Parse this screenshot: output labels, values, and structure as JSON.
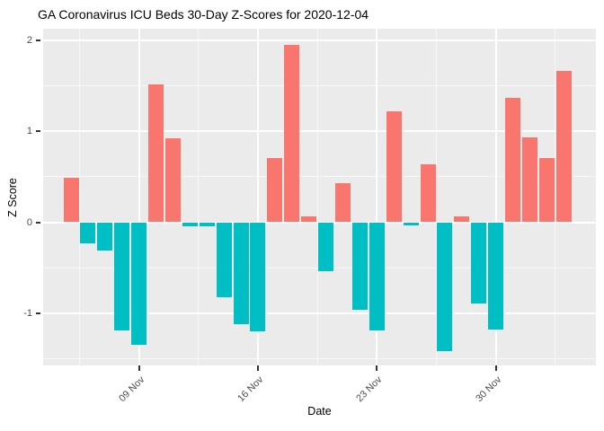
{
  "title": "GA Coronavirus ICU Beds 30-Day Z-Scores for 2020-12-04",
  "chart_data": {
    "type": "bar",
    "title": "GA Coronavirus ICU Beds 30-Day Z-Scores for 2020-12-04",
    "xlabel": "Date",
    "ylabel": "Z Score",
    "x_dates": [
      "2020-11-05",
      "2020-11-06",
      "2020-11-07",
      "2020-11-08",
      "2020-11-09",
      "2020-11-10",
      "2020-11-11",
      "2020-11-12",
      "2020-11-13",
      "2020-11-14",
      "2020-11-15",
      "2020-11-16",
      "2020-11-17",
      "2020-11-18",
      "2020-11-19",
      "2020-11-20",
      "2020-11-21",
      "2020-11-22",
      "2020-11-23",
      "2020-11-24",
      "2020-11-25",
      "2020-11-26",
      "2020-11-27",
      "2020-11-28",
      "2020-11-29",
      "2020-11-30",
      "2020-12-01",
      "2020-12-02",
      "2020-12-03",
      "2020-12-04"
    ],
    "values": [
      0.49,
      -0.23,
      -0.31,
      -1.19,
      -1.34,
      1.51,
      0.92,
      -0.04,
      -0.04,
      -0.82,
      -1.12,
      -1.2,
      0.7,
      1.95,
      0.06,
      -0.54,
      0.43,
      -0.96,
      -1.19,
      1.22,
      -0.03,
      0.64,
      -1.41,
      0.06,
      -0.89,
      -1.18,
      1.36,
      0.93,
      0.7,
      1.66
    ],
    "x_tick_labels": [
      "09 Nov",
      "16 Nov",
      "23 Nov",
      "30 Nov"
    ],
    "x_tick_day_indices": [
      5,
      12,
      19,
      26
    ],
    "y_tick_labels": [
      "-1",
      "0",
      "1",
      "2"
    ],
    "y_ticks": [
      -1,
      0,
      1,
      2
    ],
    "y_minor_ticks": [
      -1.5,
      -0.5,
      0.5,
      1.5
    ],
    "ylim": [
      -1.57,
      2.12
    ],
    "grid": "major+minor",
    "legend": "none",
    "positive_color": "#F8766D",
    "negative_color": "#00BFC4",
    "panel_background": "#EBEBEB",
    "grid_color": "#FFFFFF",
    "tick_text_color": "#4D4D4D",
    "tick_mark_color": "#333333"
  }
}
